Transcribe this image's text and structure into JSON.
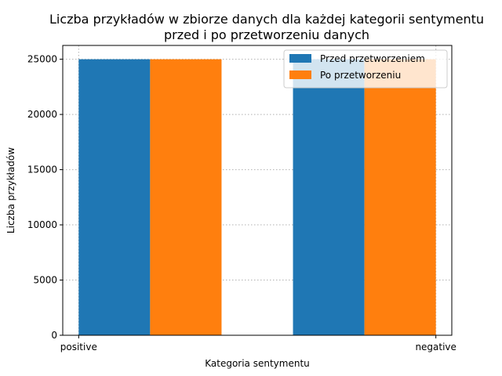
{
  "chart_data": {
    "type": "bar",
    "title_lines": [
      "Liczba przykładów w zbiorze danych dla każdej kategorii sentymentu",
      "przed i po przetworzeniu danych"
    ],
    "xlabel": "Kategoria sentymentu",
    "ylabel": "Liczba przykładów",
    "categories": [
      "positive",
      "negative"
    ],
    "series": [
      {
        "name": "Przed przetworzeniem",
        "color": "#1f77b4",
        "values": [
          25000,
          25000
        ]
      },
      {
        "name": "Po przetworzeniu",
        "color": "#ff7f0e",
        "values": [
          25000,
          25000
        ]
      }
    ],
    "yticks": [
      0,
      5000,
      10000,
      15000,
      20000,
      25000
    ],
    "ylim": [
      0,
      26250
    ],
    "grid": true,
    "legend_position": "top-right"
  }
}
